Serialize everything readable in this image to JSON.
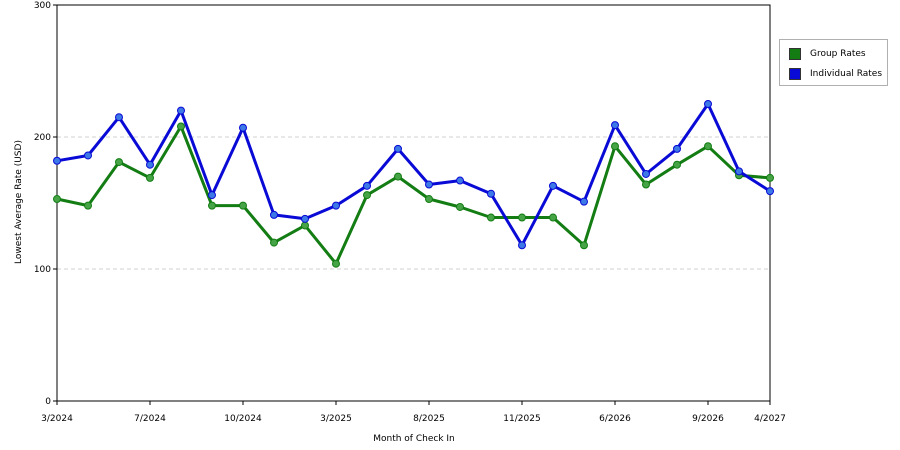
{
  "chart_data": {
    "type": "line",
    "xlabel": "Month of Check In",
    "ylabel": "Lowest Average Rate (USD)",
    "ylim": [
      0,
      300
    ],
    "yticks": [
      0,
      100,
      200,
      300
    ],
    "grid": "horizontal-dashed",
    "legend_position": "right",
    "x_count": 24,
    "x_tick_labels": [
      {
        "index": 0,
        "label": "3/2024"
      },
      {
        "index": 3,
        "label": "7/2024"
      },
      {
        "index": 6,
        "label": "10/2024"
      },
      {
        "index": 9,
        "label": "3/2025"
      },
      {
        "index": 12,
        "label": "8/2025"
      },
      {
        "index": 15,
        "label": "11/2025"
      },
      {
        "index": 18,
        "label": "6/2026"
      },
      {
        "index": 21,
        "label": "9/2026"
      },
      {
        "index": 23,
        "label": "4/2027"
      }
    ],
    "series": [
      {
        "name": "Group Rates",
        "color": "#137d13",
        "marker_color": "#46a346",
        "values": [
          153,
          148,
          181,
          169,
          208,
          148,
          148,
          120,
          133,
          104,
          156,
          170,
          153,
          147,
          139,
          139,
          139,
          118,
          193,
          164,
          179,
          193,
          171,
          169
        ]
      },
      {
        "name": "Individual Rates",
        "color": "#0a0ad6",
        "marker_color": "#3c78e6",
        "values": [
          182,
          186,
          215,
          179,
          220,
          156,
          207,
          141,
          138,
          148,
          163,
          191,
          164,
          167,
          157,
          118,
          163,
          151,
          209,
          172,
          191,
          225,
          174,
          159
        ]
      }
    ]
  }
}
